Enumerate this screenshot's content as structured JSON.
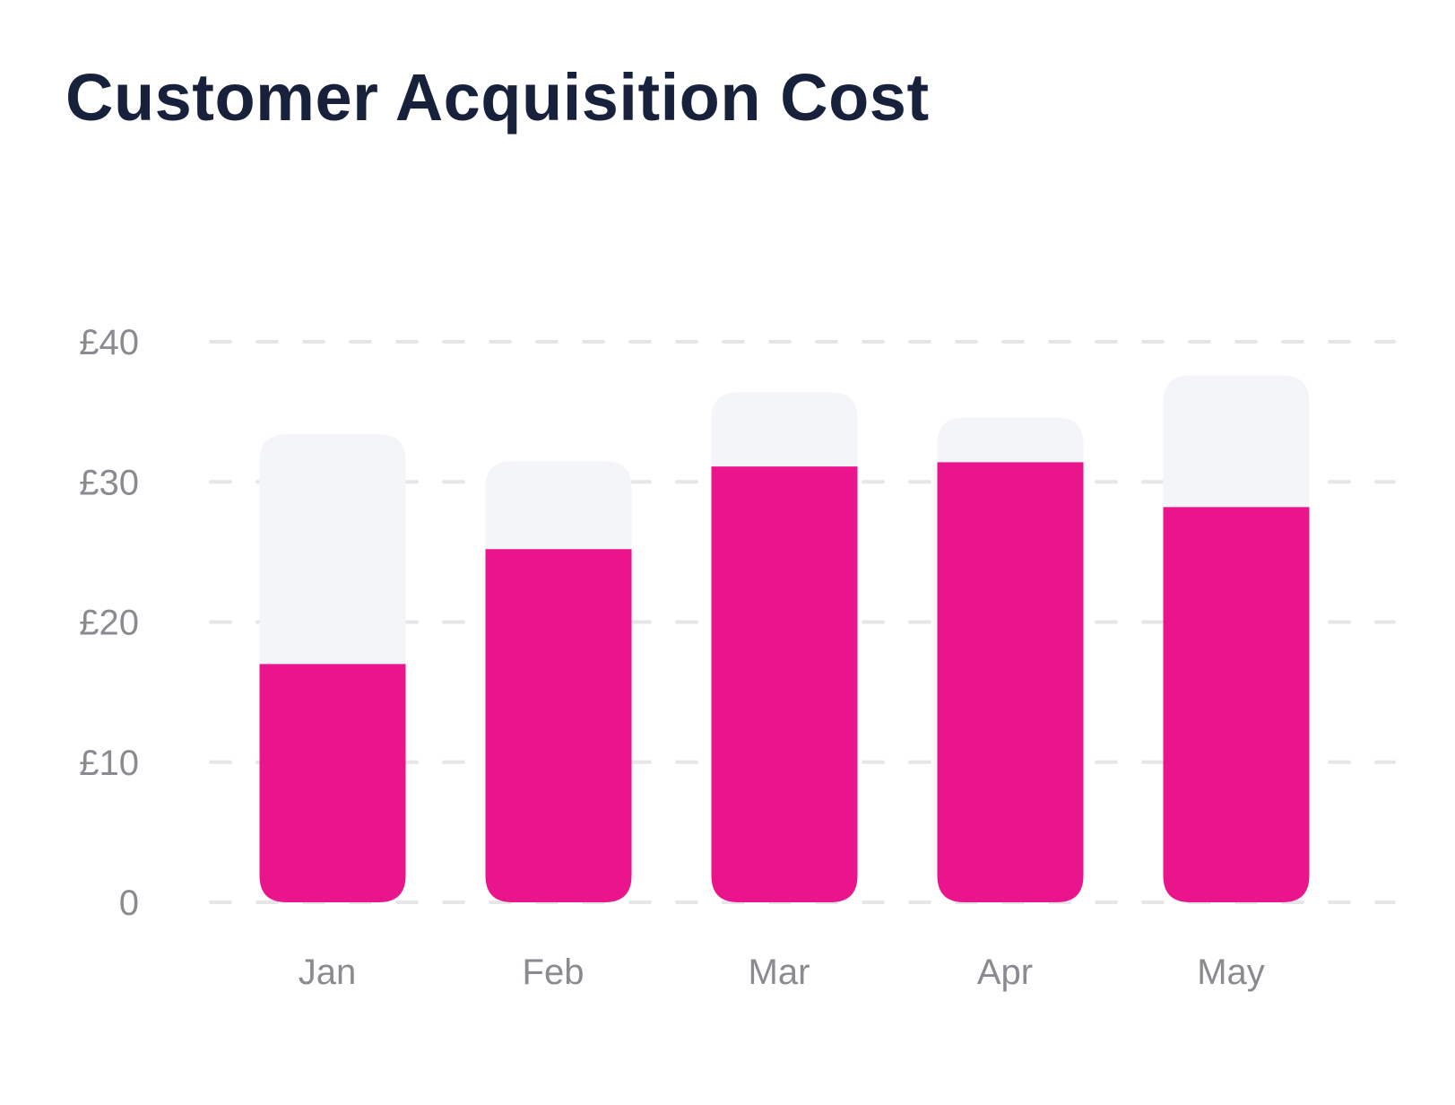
{
  "chart_data": {
    "type": "bar",
    "title": "Customer Acquisition Cost",
    "xlabel": "",
    "ylabel": "",
    "categories": [
      "Jan",
      "Feb",
      "Mar",
      "Apr",
      "May"
    ],
    "series": [
      {
        "values": [
          17,
          25.2,
          31.1,
          31.4,
          28.2
        ]
      },
      {
        "values": [
          16.4,
          6.3,
          5.3,
          3.2,
          9.4
        ]
      }
    ],
    "stacked": true,
    "ylim": [
      0,
      40
    ],
    "yticks": [
      0,
      10,
      20,
      30,
      40
    ],
    "ytick_labels": [
      "0",
      "£10",
      "£20",
      "£30",
      "£40"
    ],
    "grid": true,
    "grid_style": "dashed",
    "legend": "none",
    "colors": {
      "primary": "#ea148c",
      "secondary": "#f4f5f9",
      "grid": "#e6e6e8",
      "title": "#17213b",
      "tick_label": "#8a8a91"
    }
  }
}
